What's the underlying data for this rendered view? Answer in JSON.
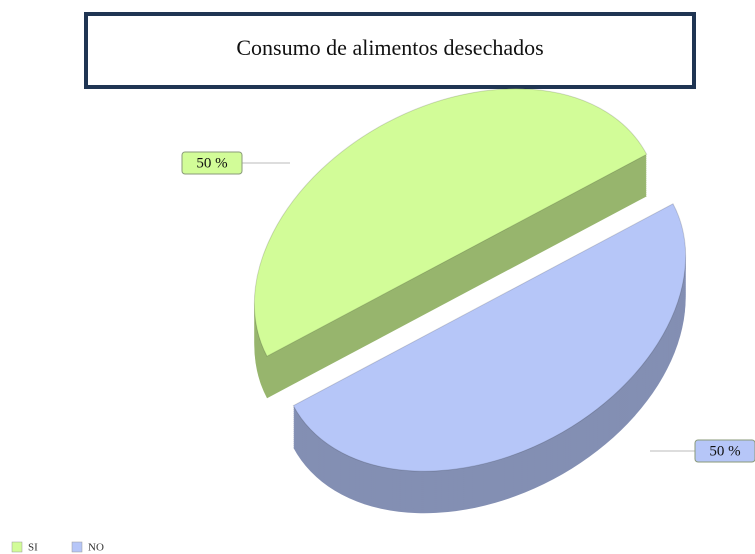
{
  "chart_data": {
    "type": "pie",
    "title": "Consumo de alimentos desechados",
    "categories": [
      "SI",
      "NO"
    ],
    "values": [
      50,
      50
    ],
    "value_labels": [
      "50 %",
      "50 %"
    ],
    "colors": [
      "#d2fc98",
      "#b6c6f8"
    ],
    "legend": "bottom-left"
  }
}
